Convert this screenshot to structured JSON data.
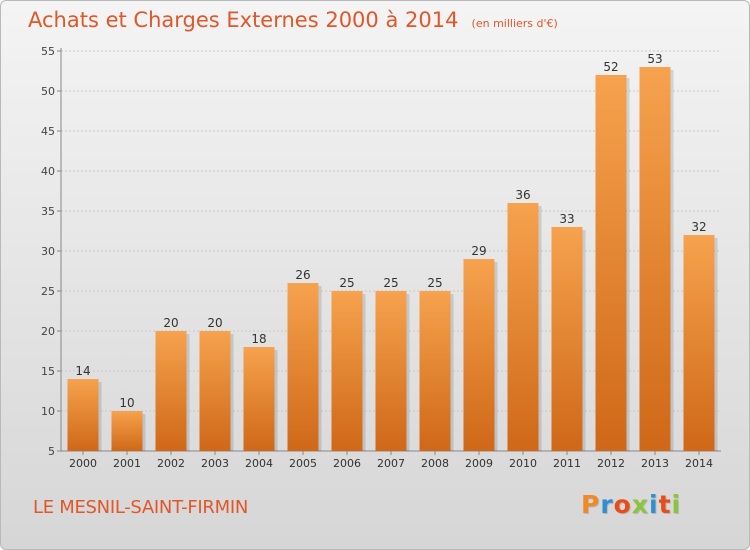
{
  "header": {
    "title": "Achats et Charges Externes 2000 à 2014",
    "subtitle": "(en milliers d'€)"
  },
  "footer": {
    "city": "LE MESNIL-SAINT-FIRMIN",
    "logo_text": "Proxiti"
  },
  "colors": {
    "bar_top": "#f6a24e",
    "bar_bottom": "#cf6818",
    "title": "#e0572a",
    "logo": [
      "#f08a24",
      "#2f8fd0",
      "#e84c1a",
      "#8cc43c",
      "#2f8fd0",
      "#e84c1a",
      "#8cc43c"
    ]
  },
  "chart_data": {
    "type": "bar",
    "categories": [
      "2000",
      "2001",
      "2002",
      "2003",
      "2004",
      "2005",
      "2006",
      "2007",
      "2008",
      "2009",
      "2010",
      "2011",
      "2012",
      "2013",
      "2014"
    ],
    "values": [
      14,
      10,
      20,
      20,
      18,
      26,
      25,
      25,
      25,
      29,
      36,
      33,
      52,
      53,
      32
    ],
    "ylim": [
      5,
      55
    ],
    "yticks": [
      5,
      10,
      15,
      20,
      25,
      30,
      35,
      40,
      45,
      50,
      55
    ],
    "grid": true,
    "data_labels": true
  }
}
